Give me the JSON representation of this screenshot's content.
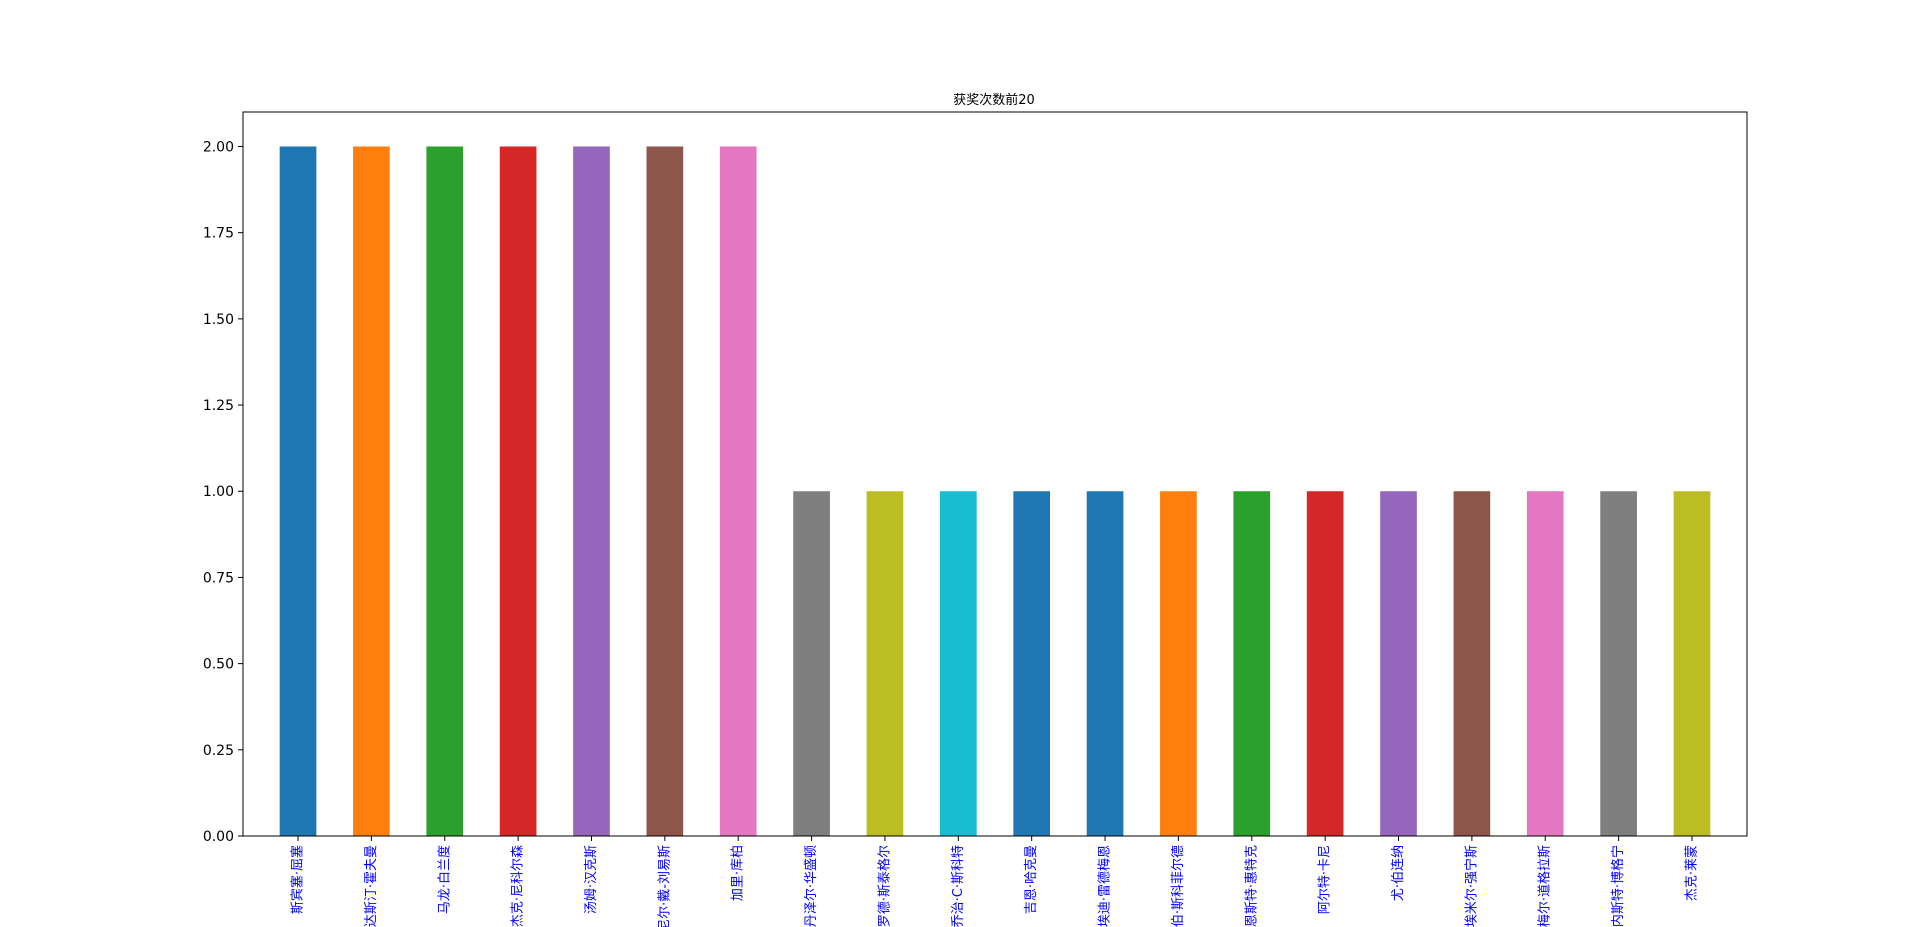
{
  "chart_data": {
    "type": "bar",
    "title": "获奖次数前20",
    "xlabel": "",
    "ylabel": "",
    "ylim": [
      0,
      2.1
    ],
    "yticks": [
      "0.00",
      "0.25",
      "0.50",
      "0.75",
      "1.00",
      "1.25",
      "1.50",
      "1.75",
      "2.00"
    ],
    "grid": false,
    "legend": "none",
    "tick_label_color": "#0000ff",
    "categories": [
      "斯宾塞·屈塞",
      "达斯汀·霍夫曼",
      "马龙·白兰度",
      "杰克·尼科尔森",
      "汤姆·汉克斯",
      "丹尼尔·戴-刘易斯",
      "加里·库柏",
      "丹泽尔·华盛顿",
      "罗德·斯泰格尔",
      "乔治·C·斯科特",
      "吉恩·哈克曼",
      "埃迪·雷德梅恩",
      "罗伯·斯科菲尔德",
      "恩斯特·惠特克",
      "阿尔特·卡尼",
      "尤·伯连纳",
      "埃米尔·强宁斯",
      "梅尔·道格拉斯",
      "欧内斯特·博格宁",
      "杰克·莱蒙"
    ],
    "values": [
      2,
      2,
      2,
      2,
      2,
      2,
      2,
      1,
      1,
      1,
      1,
      1,
      1,
      1,
      1,
      1,
      1,
      1,
      1,
      1
    ],
    "colors": [
      "#1f77b4",
      "#ff7f0e",
      "#2ca02c",
      "#d62728",
      "#9467bd",
      "#8c564b",
      "#e377c2",
      "#7f7f7f",
      "#bcbd22",
      "#17becf",
      "#1f77b4",
      "#1f77b4",
      "#ff7f0e",
      "#2ca02c",
      "#d62728",
      "#9467bd",
      "#8c564b",
      "#e377c2",
      "#7f7f7f",
      "#bcbd22"
    ]
  }
}
